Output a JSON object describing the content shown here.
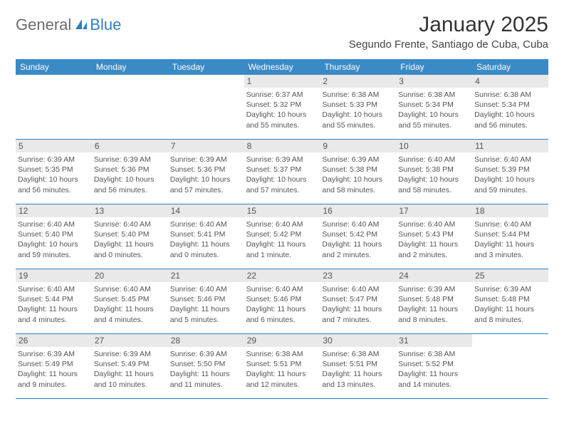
{
  "brand": {
    "part1": "General",
    "part2": "Blue"
  },
  "title": "January 2025",
  "location": "Segundo Frente, Santiago de Cuba, Cuba",
  "colors": {
    "header_bg": "#3a8ac6",
    "header_text": "#ffffff",
    "rule": "#2f7fbf",
    "daynum_bg": "#e9e9e9",
    "body_text": "#555555",
    "logo_gray": "#6b6b6b",
    "logo_blue": "#2f7fbf",
    "page_bg": "#ffffff"
  },
  "weekdays": [
    "Sunday",
    "Monday",
    "Tuesday",
    "Wednesday",
    "Thursday",
    "Friday",
    "Saturday"
  ],
  "weeks": [
    [
      {
        "blank": true
      },
      {
        "blank": true
      },
      {
        "blank": true
      },
      {
        "day": "1",
        "sunrise": "Sunrise: 6:37 AM",
        "sunset": "Sunset: 5:32 PM",
        "daylight": "Daylight: 10 hours and 55 minutes."
      },
      {
        "day": "2",
        "sunrise": "Sunrise: 6:38 AM",
        "sunset": "Sunset: 5:33 PM",
        "daylight": "Daylight: 10 hours and 55 minutes."
      },
      {
        "day": "3",
        "sunrise": "Sunrise: 6:38 AM",
        "sunset": "Sunset: 5:34 PM",
        "daylight": "Daylight: 10 hours and 55 minutes."
      },
      {
        "day": "4",
        "sunrise": "Sunrise: 6:38 AM",
        "sunset": "Sunset: 5:34 PM",
        "daylight": "Daylight: 10 hours and 56 minutes."
      }
    ],
    [
      {
        "day": "5",
        "sunrise": "Sunrise: 6:39 AM",
        "sunset": "Sunset: 5:35 PM",
        "daylight": "Daylight: 10 hours and 56 minutes."
      },
      {
        "day": "6",
        "sunrise": "Sunrise: 6:39 AM",
        "sunset": "Sunset: 5:36 PM",
        "daylight": "Daylight: 10 hours and 56 minutes."
      },
      {
        "day": "7",
        "sunrise": "Sunrise: 6:39 AM",
        "sunset": "Sunset: 5:36 PM",
        "daylight": "Daylight: 10 hours and 57 minutes."
      },
      {
        "day": "8",
        "sunrise": "Sunrise: 6:39 AM",
        "sunset": "Sunset: 5:37 PM",
        "daylight": "Daylight: 10 hours and 57 minutes."
      },
      {
        "day": "9",
        "sunrise": "Sunrise: 6:39 AM",
        "sunset": "Sunset: 5:38 PM",
        "daylight": "Daylight: 10 hours and 58 minutes."
      },
      {
        "day": "10",
        "sunrise": "Sunrise: 6:40 AM",
        "sunset": "Sunset: 5:38 PM",
        "daylight": "Daylight: 10 hours and 58 minutes."
      },
      {
        "day": "11",
        "sunrise": "Sunrise: 6:40 AM",
        "sunset": "Sunset: 5:39 PM",
        "daylight": "Daylight: 10 hours and 59 minutes."
      }
    ],
    [
      {
        "day": "12",
        "sunrise": "Sunrise: 6:40 AM",
        "sunset": "Sunset: 5:40 PM",
        "daylight": "Daylight: 10 hours and 59 minutes."
      },
      {
        "day": "13",
        "sunrise": "Sunrise: 6:40 AM",
        "sunset": "Sunset: 5:40 PM",
        "daylight": "Daylight: 11 hours and 0 minutes."
      },
      {
        "day": "14",
        "sunrise": "Sunrise: 6:40 AM",
        "sunset": "Sunset: 5:41 PM",
        "daylight": "Daylight: 11 hours and 0 minutes."
      },
      {
        "day": "15",
        "sunrise": "Sunrise: 6:40 AM",
        "sunset": "Sunset: 5:42 PM",
        "daylight": "Daylight: 11 hours and 1 minute."
      },
      {
        "day": "16",
        "sunrise": "Sunrise: 6:40 AM",
        "sunset": "Sunset: 5:42 PM",
        "daylight": "Daylight: 11 hours and 2 minutes."
      },
      {
        "day": "17",
        "sunrise": "Sunrise: 6:40 AM",
        "sunset": "Sunset: 5:43 PM",
        "daylight": "Daylight: 11 hours and 2 minutes."
      },
      {
        "day": "18",
        "sunrise": "Sunrise: 6:40 AM",
        "sunset": "Sunset: 5:44 PM",
        "daylight": "Daylight: 11 hours and 3 minutes."
      }
    ],
    [
      {
        "day": "19",
        "sunrise": "Sunrise: 6:40 AM",
        "sunset": "Sunset: 5:44 PM",
        "daylight": "Daylight: 11 hours and 4 minutes."
      },
      {
        "day": "20",
        "sunrise": "Sunrise: 6:40 AM",
        "sunset": "Sunset: 5:45 PM",
        "daylight": "Daylight: 11 hours and 4 minutes."
      },
      {
        "day": "21",
        "sunrise": "Sunrise: 6:40 AM",
        "sunset": "Sunset: 5:46 PM",
        "daylight": "Daylight: 11 hours and 5 minutes."
      },
      {
        "day": "22",
        "sunrise": "Sunrise: 6:40 AM",
        "sunset": "Sunset: 5:46 PM",
        "daylight": "Daylight: 11 hours and 6 minutes."
      },
      {
        "day": "23",
        "sunrise": "Sunrise: 6:40 AM",
        "sunset": "Sunset: 5:47 PM",
        "daylight": "Daylight: 11 hours and 7 minutes."
      },
      {
        "day": "24",
        "sunrise": "Sunrise: 6:39 AM",
        "sunset": "Sunset: 5:48 PM",
        "daylight": "Daylight: 11 hours and 8 minutes."
      },
      {
        "day": "25",
        "sunrise": "Sunrise: 6:39 AM",
        "sunset": "Sunset: 5:48 PM",
        "daylight": "Daylight: 11 hours and 8 minutes."
      }
    ],
    [
      {
        "day": "26",
        "sunrise": "Sunrise: 6:39 AM",
        "sunset": "Sunset: 5:49 PM",
        "daylight": "Daylight: 11 hours and 9 minutes."
      },
      {
        "day": "27",
        "sunrise": "Sunrise: 6:39 AM",
        "sunset": "Sunset: 5:49 PM",
        "daylight": "Daylight: 11 hours and 10 minutes."
      },
      {
        "day": "28",
        "sunrise": "Sunrise: 6:39 AM",
        "sunset": "Sunset: 5:50 PM",
        "daylight": "Daylight: 11 hours and 11 minutes."
      },
      {
        "day": "29",
        "sunrise": "Sunrise: 6:38 AM",
        "sunset": "Sunset: 5:51 PM",
        "daylight": "Daylight: 11 hours and 12 minutes."
      },
      {
        "day": "30",
        "sunrise": "Sunrise: 6:38 AM",
        "sunset": "Sunset: 5:51 PM",
        "daylight": "Daylight: 11 hours and 13 minutes."
      },
      {
        "day": "31",
        "sunrise": "Sunrise: 6:38 AM",
        "sunset": "Sunset: 5:52 PM",
        "daylight": "Daylight: 11 hours and 14 minutes."
      },
      {
        "blank": true
      }
    ]
  ]
}
